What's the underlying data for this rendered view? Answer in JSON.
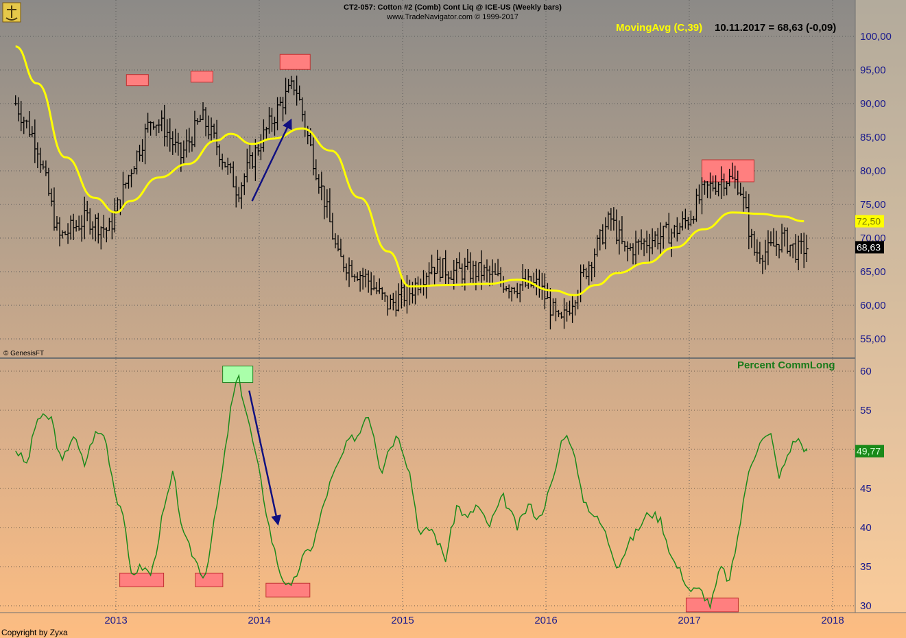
{
  "header": {
    "title": "CT2-057:  Cotton #2 (Comb) Cont Liq @ ICE-US  (Weekly bars)",
    "subtitle": "www.TradeNavigator.com © 1999-2017"
  },
  "labels": {
    "moving_avg": "MovingAvg (C,39)",
    "moving_avg_value": "10.11.2017 = 68,63 (-0,09)",
    "percent_commlong": "Percent CommLong",
    "genesis": "© GenesisFT",
    "copyright": "Copyright by Zyxa",
    "price_tag": "68,63",
    "ma_tag": "72,50",
    "pct_tag": "49,77"
  },
  "colors": {
    "price_bars": "#000000",
    "moving_avg": "#ffff00",
    "percent_line": "#1a8a1a",
    "highlight_red": "#ff7f7f",
    "highlight_green": "#aaffaa",
    "arrow": "#101080",
    "axis_text": "#1a1a8c"
  },
  "chart_data": [
    {
      "type": "ohlc",
      "name": "Cotton #2 weekly price",
      "ylim": [
        53,
        102
      ],
      "yticks": [
        "55,00",
        "60,00",
        "65,00",
        "70,00",
        "75,00",
        "80,00",
        "85,00",
        "90,00",
        "95,00",
        "100,00"
      ],
      "price_anchors": [
        [
          2012.3,
          90
        ],
        [
          2012.45,
          84
        ],
        [
          2012.6,
          70
        ],
        [
          2012.8,
          73
        ],
        [
          2012.95,
          71
        ],
        [
          2013.1,
          80
        ],
        [
          2013.25,
          88
        ],
        [
          2013.35,
          86
        ],
        [
          2013.45,
          82
        ],
        [
          2013.6,
          88
        ],
        [
          2013.7,
          84
        ],
        [
          2013.85,
          77
        ],
        [
          2014.0,
          84
        ],
        [
          2014.15,
          90
        ],
        [
          2014.25,
          93
        ],
        [
          2014.35,
          84
        ],
        [
          2014.45,
          76
        ],
        [
          2014.55,
          67
        ],
        [
          2014.75,
          64
        ],
        [
          2014.9,
          60
        ],
        [
          2015.05,
          62
        ],
        [
          2015.2,
          66
        ],
        [
          2015.35,
          65
        ],
        [
          2015.55,
          65
        ],
        [
          2015.75,
          63
        ],
        [
          2015.95,
          63
        ],
        [
          2016.1,
          57
        ],
        [
          2016.25,
          64
        ],
        [
          2016.45,
          73
        ],
        [
          2016.55,
          68
        ],
        [
          2016.75,
          70
        ],
        [
          2016.9,
          71
        ],
        [
          2017.0,
          73
        ],
        [
          2017.1,
          77
        ],
        [
          2017.25,
          79
        ],
        [
          2017.35,
          78
        ],
        [
          2017.45,
          68
        ],
        [
          2017.55,
          68
        ],
        [
          2017.65,
          70
        ],
        [
          2017.75,
          68
        ],
        [
          2017.82,
          68.63
        ]
      ],
      "last_close": 68.63,
      "moving_average": {
        "name": "MovingAvg (C,39)",
        "points": [
          [
            2012.3,
            98.5
          ],
          [
            2012.45,
            93
          ],
          [
            2012.65,
            82
          ],
          [
            2012.85,
            76
          ],
          [
            2013.0,
            73.8
          ],
          [
            2013.1,
            75.5
          ],
          [
            2013.3,
            79
          ],
          [
            2013.5,
            81
          ],
          [
            2013.7,
            84.5
          ],
          [
            2013.8,
            85.5
          ],
          [
            2013.95,
            84
          ],
          [
            2014.1,
            84.8
          ],
          [
            2014.3,
            86.3
          ],
          [
            2014.5,
            83
          ],
          [
            2014.7,
            76
          ],
          [
            2014.9,
            68
          ],
          [
            2015.05,
            62.8
          ],
          [
            2015.3,
            63
          ],
          [
            2015.6,
            63.2
          ],
          [
            2015.8,
            63.8
          ],
          [
            2016.05,
            62.2
          ],
          [
            2016.2,
            61.5
          ],
          [
            2016.35,
            63
          ],
          [
            2016.5,
            64.8
          ],
          [
            2016.7,
            66.3
          ],
          [
            2016.9,
            68.6
          ],
          [
            2017.1,
            71.3
          ],
          [
            2017.3,
            73.8
          ],
          [
            2017.5,
            73.6
          ],
          [
            2017.65,
            73.2
          ],
          [
            2017.8,
            72.5
          ]
        ],
        "last_value": 72.5
      },
      "highlights": [
        [
          2013.15,
          93.5
        ],
        [
          2013.6,
          94
        ],
        [
          2014.25,
          96.2
        ],
        [
          2017.27,
          80
        ]
      ],
      "arrow": {
        "from": [
          2013.95,
          75.5
        ],
        "to": [
          2014.22,
          87.5
        ]
      }
    },
    {
      "type": "line",
      "name": "Percent CommLong",
      "ylim": [
        29,
        61
      ],
      "yticks": [
        "30",
        "35",
        "40",
        "45",
        "50",
        "55",
        "60"
      ],
      "points": [
        [
          2012.3,
          50
        ],
        [
          2012.38,
          48
        ],
        [
          2012.45,
          54
        ],
        [
          2012.55,
          54
        ],
        [
          2012.62,
          48
        ],
        [
          2012.7,
          52
        ],
        [
          2012.78,
          48
        ],
        [
          2012.85,
          52
        ],
        [
          2012.92,
          52
        ],
        [
          2013.0,
          44
        ],
        [
          2013.05,
          42
        ],
        [
          2013.1,
          34
        ],
        [
          2013.18,
          35
        ],
        [
          2013.25,
          34
        ],
        [
          2013.32,
          41
        ],
        [
          2013.4,
          47
        ],
        [
          2013.47,
          39
        ],
        [
          2013.55,
          36
        ],
        [
          2013.62,
          33.5
        ],
        [
          2013.68,
          40
        ],
        [
          2013.75,
          48
        ],
        [
          2013.8,
          55
        ],
        [
          2013.85,
          59.5
        ],
        [
          2013.92,
          54
        ],
        [
          2014.0,
          47
        ],
        [
          2014.08,
          39
        ],
        [
          2014.15,
          34
        ],
        [
          2014.22,
          32
        ],
        [
          2014.3,
          36
        ],
        [
          2014.38,
          38
        ],
        [
          2014.45,
          43
        ],
        [
          2014.5,
          46
        ],
        [
          2014.55,
          48
        ],
        [
          2014.62,
          51
        ],
        [
          2014.7,
          52
        ],
        [
          2014.75,
          55
        ],
        [
          2014.8,
          52
        ],
        [
          2014.85,
          47
        ],
        [
          2014.9,
          50
        ],
        [
          2014.97,
          52
        ],
        [
          2015.05,
          47
        ],
        [
          2015.12,
          39
        ],
        [
          2015.2,
          40
        ],
        [
          2015.3,
          36
        ],
        [
          2015.38,
          43
        ],
        [
          2015.45,
          41
        ],
        [
          2015.52,
          43
        ],
        [
          2015.6,
          40
        ],
        [
          2015.7,
          44
        ],
        [
          2015.8,
          40
        ],
        [
          2015.88,
          43
        ],
        [
          2015.95,
          41
        ],
        [
          2016.05,
          46
        ],
        [
          2016.12,
          52
        ],
        [
          2016.18,
          51
        ],
        [
          2016.25,
          44
        ],
        [
          2016.32,
          42
        ],
        [
          2016.4,
          40
        ],
        [
          2016.5,
          35
        ],
        [
          2016.58,
          38
        ],
        [
          2016.65,
          40
        ],
        [
          2016.72,
          42
        ],
        [
          2016.8,
          41
        ],
        [
          2016.88,
          36
        ],
        [
          2016.95,
          34
        ],
        [
          2017.0,
          32
        ],
        [
          2017.08,
          32
        ],
        [
          2017.15,
          30
        ],
        [
          2017.22,
          35
        ],
        [
          2017.28,
          33
        ],
        [
          2017.35,
          40
        ],
        [
          2017.42,
          48
        ],
        [
          2017.5,
          51
        ],
        [
          2017.58,
          52
        ],
        [
          2017.62,
          46
        ],
        [
          2017.7,
          50
        ],
        [
          2017.75,
          51.5
        ],
        [
          2017.82,
          49.77
        ]
      ],
      "last_value": 49.77,
      "highlights": [
        [
          2013.18,
          33.3
        ],
        [
          2013.65,
          33.3
        ],
        [
          2013.85,
          59.6
        ],
        [
          2014.2,
          32
        ],
        [
          2017.16,
          30.1
        ]
      ],
      "arrow": {
        "from": [
          2013.93,
          57.5
        ],
        "to": [
          2014.13,
          40.5
        ]
      }
    }
  ],
  "xticks": [
    "2013",
    "2014",
    "2015",
    "2016",
    "2017",
    "2018"
  ]
}
